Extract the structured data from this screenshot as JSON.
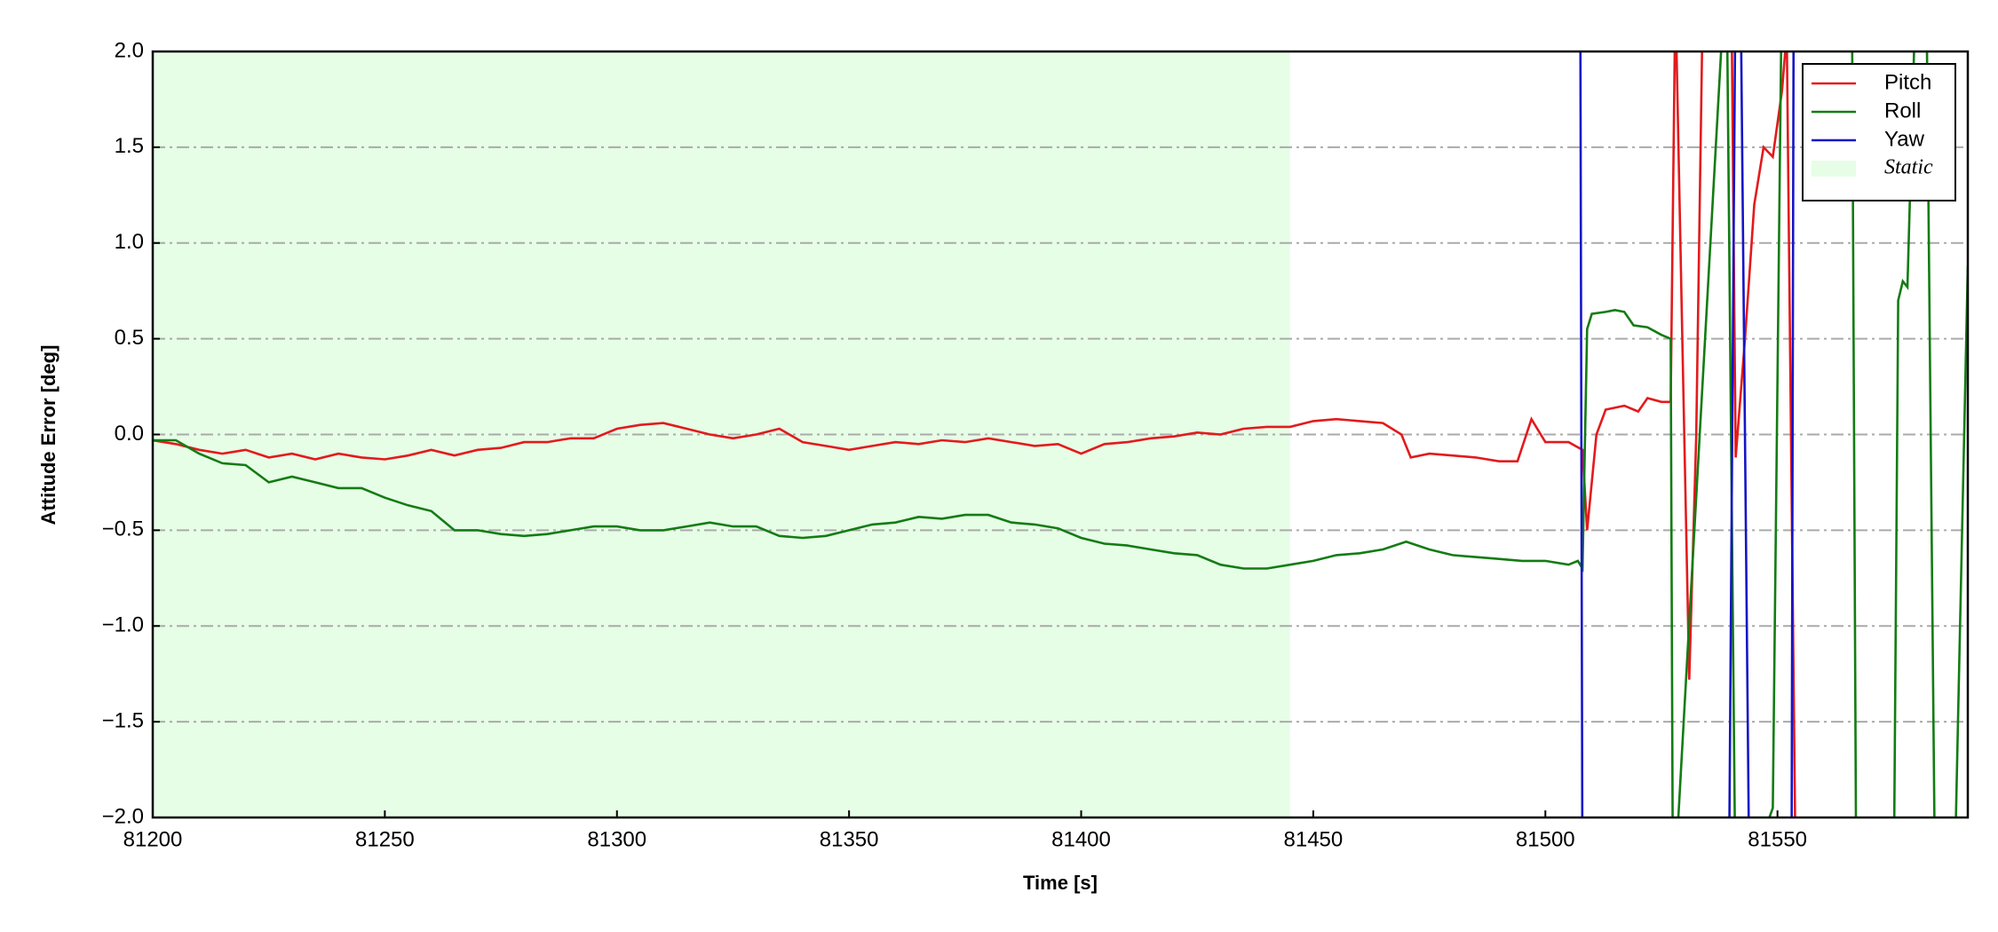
{
  "chart_data": {
    "type": "line",
    "xlabel": "Time [s]",
    "ylabel": "Attitude Error [deg]",
    "xlim": [
      81200,
      81591
    ],
    "ylim": [
      -2.0,
      2.0
    ],
    "xticks": [
      81200,
      81250,
      81300,
      81350,
      81400,
      81450,
      81500,
      81550
    ],
    "yticks": [
      {
        "value": -2.0,
        "label": "−2.0"
      },
      {
        "value": -1.5,
        "label": "−1.5"
      },
      {
        "value": -1.0,
        "label": "−1.0"
      },
      {
        "value": -0.5,
        "label": "−0.5"
      },
      {
        "value": 0,
        "label": "0.0"
      },
      {
        "value": 0.5,
        "label": "0.5"
      },
      {
        "value": 1.0,
        "label": "1.0"
      },
      {
        "value": 1.5,
        "label": "1.5"
      },
      {
        "value": 2.0,
        "label": "2.0"
      }
    ],
    "grid": "y",
    "legend": "upper right",
    "spans": [
      {
        "name": "Static",
        "x": [
          81200,
          81445
        ],
        "color": "#e6fde6"
      }
    ],
    "series": [
      {
        "name": "Pitch",
        "color": "#e31a1c",
        "x": [
          81200,
          81205,
          81210,
          81215,
          81220,
          81225,
          81230,
          81235,
          81240,
          81245,
          81250,
          81255,
          81260,
          81265,
          81270,
          81275,
          81280,
          81285,
          81290,
          81295,
          81300,
          81305,
          81310,
          81315,
          81320,
          81325,
          81330,
          81335,
          81340,
          81345,
          81350,
          81355,
          81360,
          81365,
          81370,
          81375,
          81380,
          81385,
          81390,
          81395,
          81400,
          81405,
          81410,
          81415,
          81420,
          81425,
          81430,
          81435,
          81440,
          81445,
          81450,
          81455,
          81460,
          81465,
          81469,
          81471,
          81475,
          81480,
          81485,
          81490,
          81494,
          81497,
          81500,
          81505,
          81508,
          81509,
          81511,
          81513,
          81517,
          81520,
          81522,
          81525,
          81527,
          81528,
          81529.5,
          81531,
          81532.5,
          81534,
          81540,
          81541,
          81543,
          81545,
          81547,
          81549,
          81551,
          81552,
          81554
        ],
        "values": [
          -0.03,
          -0.05,
          -0.08,
          -0.1,
          -0.08,
          -0.12,
          -0.1,
          -0.13,
          -0.1,
          -0.12,
          -0.13,
          -0.11,
          -0.08,
          -0.11,
          -0.08,
          -0.07,
          -0.04,
          -0.04,
          -0.02,
          -0.02,
          0.03,
          0.05,
          0.06,
          0.03,
          0.0,
          -0.02,
          0.0,
          0.03,
          -0.04,
          -0.06,
          -0.08,
          -0.06,
          -0.04,
          -0.05,
          -0.03,
          -0.04,
          -0.02,
          -0.04,
          -0.06,
          -0.05,
          -0.1,
          -0.05,
          -0.04,
          -0.02,
          -0.01,
          0.01,
          0.0,
          0.03,
          0.04,
          0.04,
          0.07,
          0.08,
          0.07,
          0.06,
          0.0,
          -0.12,
          -0.1,
          -0.11,
          -0.12,
          -0.14,
          -0.14,
          0.08,
          -0.04,
          -0.04,
          -0.08,
          -0.5,
          0.0,
          0.13,
          0.15,
          0.12,
          0.19,
          0.17,
          0.17,
          2.3,
          0.5,
          -1.28,
          0.0,
          2.4,
          2.5,
          -0.12,
          0.5,
          1.2,
          1.5,
          1.45,
          1.8,
          2.1,
          -2.5
        ]
      },
      {
        "name": "Roll",
        "color": "#137c13",
        "x": [
          81200,
          81205,
          81210,
          81215,
          81220,
          81225,
          81230,
          81235,
          81240,
          81245,
          81250,
          81255,
          81260,
          81265,
          81270,
          81275,
          81280,
          81285,
          81290,
          81295,
          81300,
          81305,
          81310,
          81315,
          81320,
          81325,
          81330,
          81335,
          81340,
          81345,
          81350,
          81355,
          81360,
          81365,
          81370,
          81375,
          81380,
          81385,
          81390,
          81395,
          81400,
          81405,
          81410,
          81415,
          81420,
          81425,
          81430,
          81435,
          81440,
          81445,
          81450,
          81455,
          81460,
          81465,
          81470,
          81475,
          81480,
          81485,
          81490,
          81495,
          81500,
          81505,
          81507,
          81508,
          81509,
          81510,
          81513,
          81515,
          81517,
          81519,
          81522,
          81525,
          81527,
          81527.5,
          81539,
          81541,
          81549,
          81551,
          81566,
          81567,
          81575,
          81576,
          81577,
          81578,
          81580,
          81582,
          81584,
          81588,
          81591
        ],
        "values": [
          -0.03,
          -0.03,
          -0.1,
          -0.15,
          -0.16,
          -0.25,
          -0.22,
          -0.25,
          -0.28,
          -0.28,
          -0.33,
          -0.37,
          -0.4,
          -0.5,
          -0.5,
          -0.52,
          -0.53,
          -0.52,
          -0.5,
          -0.48,
          -0.48,
          -0.5,
          -0.5,
          -0.48,
          -0.46,
          -0.48,
          -0.48,
          -0.53,
          -0.54,
          -0.53,
          -0.5,
          -0.47,
          -0.46,
          -0.43,
          -0.44,
          -0.42,
          -0.42,
          -0.46,
          -0.47,
          -0.49,
          -0.54,
          -0.57,
          -0.58,
          -0.6,
          -0.62,
          -0.63,
          -0.68,
          -0.7,
          -0.7,
          -0.68,
          -0.66,
          -0.63,
          -0.62,
          -0.6,
          -0.56,
          -0.6,
          -0.63,
          -0.64,
          -0.65,
          -0.66,
          -0.66,
          -0.68,
          -0.66,
          -0.7,
          0.55,
          0.63,
          0.64,
          0.65,
          0.64,
          0.57,
          0.56,
          0.52,
          0.5,
          -2.5,
          2.5,
          -2.5,
          -1.95,
          2.5,
          2.5,
          -2.5,
          -2.5,
          0.7,
          0.8,
          0.77,
          2.5,
          2.5,
          -2.5,
          -2.5,
          0.88
        ]
      },
      {
        "name": "Yaw",
        "color": "#1515c8",
        "x": [
          81507.5,
          81508,
          81539.5,
          81541,
          81542,
          81544,
          81553,
          81553.5
        ],
        "values": [
          2.5,
          -2.5,
          -2.5,
          2.5,
          2.5,
          -2.5,
          -2.5,
          2.5
        ]
      }
    ]
  }
}
